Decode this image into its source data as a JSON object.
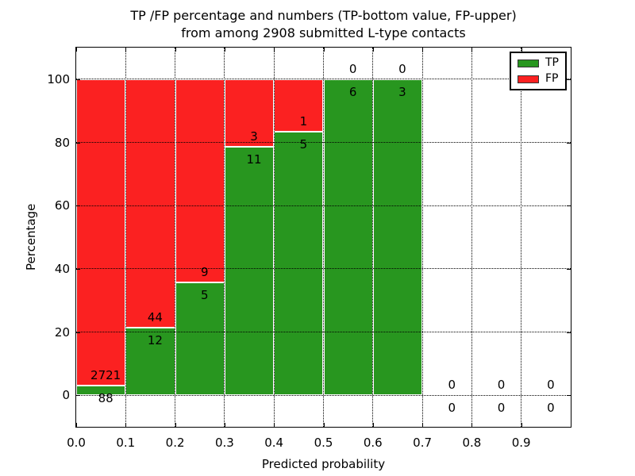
{
  "title": {
    "line1": "TP /FP percentage and numbers (TP-bottom value, FP-upper)",
    "line2": "from among 2908 submitted L-type contacts"
  },
  "chart_data": {
    "type": "bar",
    "stacked": true,
    "title": "TP /FP percentage and numbers (TP-bottom value, FP-upper) from among 2908 submitted L-type contacts",
    "xlabel": "Predicted probability",
    "ylabel": "Percentage",
    "xlim": [
      0.0,
      1.0
    ],
    "ylim": [
      -10,
      110
    ],
    "grid": true,
    "legend_position": "upper right",
    "xticks": [
      "0.0",
      "0.1",
      "0.2",
      "0.3",
      "0.4",
      "0.5",
      "0.6",
      "0.7",
      "0.8",
      "0.9"
    ],
    "yticks": [
      "0",
      "20",
      "40",
      "60",
      "80",
      "100"
    ],
    "bins": [
      {
        "x0": 0.0,
        "x1": 0.1,
        "tp": 88,
        "fp": 2721,
        "tp_pct": 3.13
      },
      {
        "x0": 0.1,
        "x1": 0.2,
        "tp": 12,
        "fp": 44,
        "tp_pct": 21.43
      },
      {
        "x0": 0.2,
        "x1": 0.3,
        "tp": 5,
        "fp": 9,
        "tp_pct": 35.71
      },
      {
        "x0": 0.3,
        "x1": 0.4,
        "tp": 11,
        "fp": 3,
        "tp_pct": 78.57
      },
      {
        "x0": 0.4,
        "x1": 0.5,
        "tp": 5,
        "fp": 1,
        "tp_pct": 83.33
      },
      {
        "x0": 0.5,
        "x1": 0.6,
        "tp": 6,
        "fp": 0,
        "tp_pct": 100
      },
      {
        "x0": 0.6,
        "x1": 0.7,
        "tp": 3,
        "fp": 0,
        "tp_pct": 100
      },
      {
        "x0": 0.7,
        "x1": 0.8,
        "tp": 0,
        "fp": 0,
        "tp_pct": 0
      },
      {
        "x0": 0.8,
        "x1": 0.9,
        "tp": 0,
        "fp": 0,
        "tp_pct": 0
      },
      {
        "x0": 0.9,
        "x1": 1.0,
        "tp": 0,
        "fp": 0,
        "tp_pct": 0
      }
    ],
    "legend": [
      {
        "label": "TP",
        "color": "#28961f"
      },
      {
        "label": "FP",
        "color": "#fb2121"
      }
    ],
    "colors": {
      "tp": "#28961f",
      "fp": "#fb2121",
      "bar_edge": "#ffffff",
      "grid": "#000000",
      "axis": "#000000"
    }
  }
}
